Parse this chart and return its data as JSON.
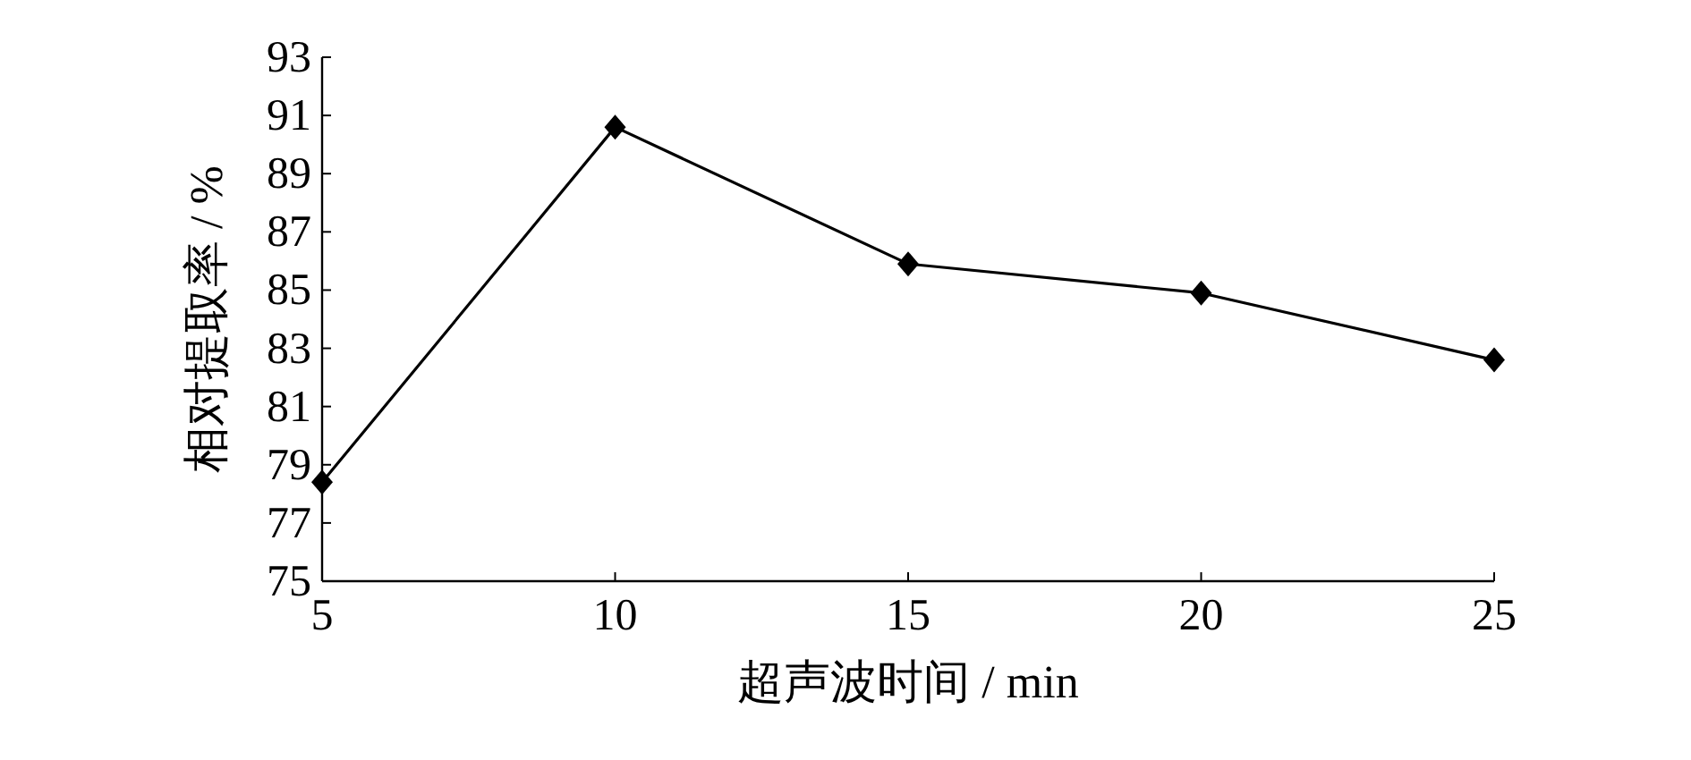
{
  "chart_data": {
    "type": "line",
    "xlabel": "超声波时间 / min",
    "ylabel": "相对提取率 / %",
    "x": [
      5,
      10,
      15,
      20,
      25
    ],
    "series": [
      {
        "color": "#000000",
        "values": [
          78.4,
          90.6,
          85.9,
          84.9,
          82.6
        ]
      }
    ],
    "xlim": [
      5,
      25
    ],
    "xticks": [
      5,
      10,
      15,
      20,
      25
    ],
    "ylim": [
      75,
      93
    ],
    "yticks": [
      75,
      77,
      79,
      81,
      83,
      85,
      87,
      89,
      91,
      93
    ],
    "marker": "diamond",
    "line_style": "solid",
    "grid": false
  }
}
